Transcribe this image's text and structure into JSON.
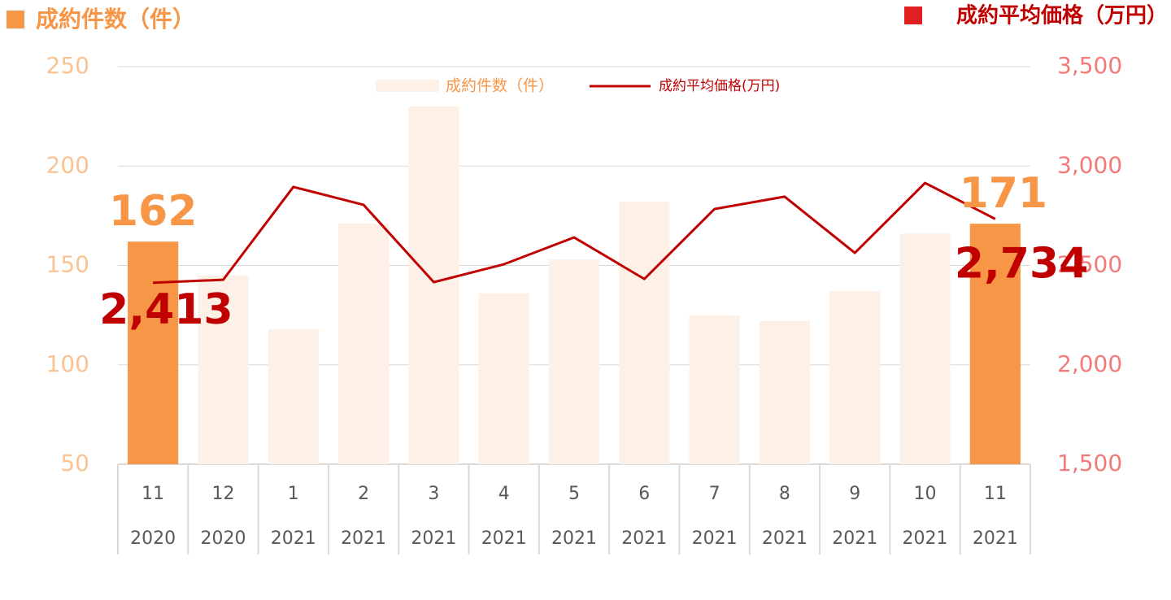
{
  "chart_data": {
    "type": "bar-line",
    "ytitle": "成約件数（件）",
    "y2title": "成約平均価格（万円）",
    "categories": [
      "11",
      "12",
      "1",
      "2",
      "3",
      "4",
      "5",
      "6",
      "7",
      "8",
      "9",
      "10",
      "11"
    ],
    "category_years": [
      "2020",
      "2020",
      "2021",
      "2021",
      "2021",
      "2021",
      "2021",
      "2021",
      "2021",
      "2021",
      "2021",
      "2021",
      "2021"
    ],
    "series": [
      {
        "name": "成約件数（件）",
        "type": "bar",
        "color": "#fdf0e6",
        "colors": [
          "#f79646",
          "#fdf0e6",
          "#fdf0e6",
          "#fdf0e6",
          "#fdf0e6",
          "#fdf0e6",
          "#fdf0e6",
          "#fdf0e6",
          "#fdf0e6",
          "#fdf0e6",
          "#fdf0e6",
          "#fdf0e6",
          "#f79646"
        ],
        "values": [
          162,
          145,
          118,
          171,
          230,
          136,
          153,
          182,
          125,
          122,
          137,
          166,
          171
        ],
        "value_labels": [
          "162",
          null,
          null,
          null,
          null,
          null,
          null,
          null,
          null,
          null,
          null,
          null,
          "171"
        ]
      },
      {
        "name": "成約平均価格(万円)",
        "type": "line",
        "axis": "y2",
        "color": "#c00000",
        "values": [
          2413,
          2428,
          2895,
          2805,
          2416,
          2506,
          2641,
          2432,
          2784,
          2846,
          2563,
          2915,
          2734
        ],
        "value_labels": [
          "2,413",
          null,
          null,
          null,
          null,
          null,
          null,
          null,
          null,
          null,
          null,
          null,
          "2,734"
        ]
      }
    ],
    "ylim": [
      50,
      250
    ],
    "yticks": [
      50,
      100,
      150,
      200,
      250
    ],
    "y2lim": [
      1500,
      3500
    ],
    "y2ticks": [
      {
        "value": 1500,
        "label": "1,500"
      },
      {
        "value": 2000,
        "label": "2,000"
      },
      {
        "value": 2500,
        "label": "2,500"
      },
      {
        "value": 3000,
        "label": "3,000"
      },
      {
        "value": 3500,
        "label": "3,500"
      }
    ],
    "grid": true
  }
}
